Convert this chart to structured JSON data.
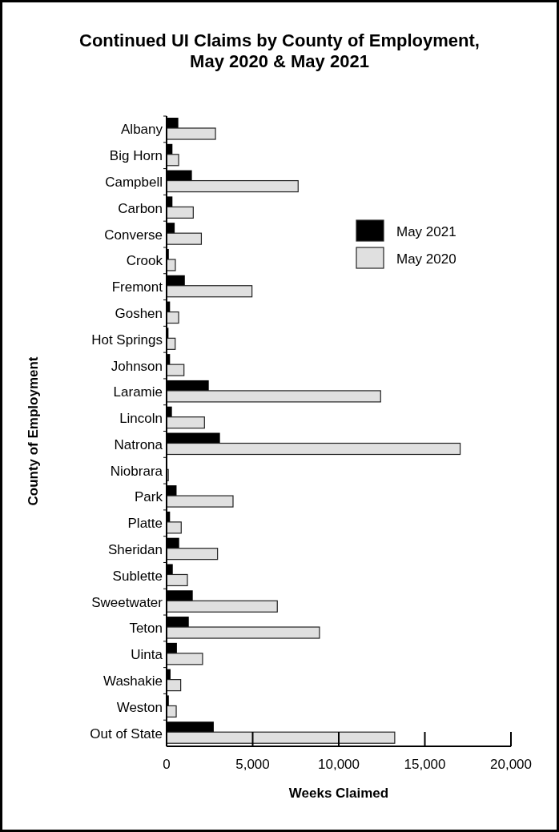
{
  "chart_data": {
    "type": "bar",
    "orientation": "horizontal",
    "title": "Continued UI Claims by County of Employment, May 2020 & May 2021",
    "xlabel": "Weeks Claimed",
    "ylabel": "County of Employment",
    "categories": [
      "Albany",
      "Big Horn",
      "Campbell",
      "Carbon",
      "Converse",
      "Crook",
      "Fremont",
      "Goshen",
      "Hot Springs",
      "Johnson",
      "Laramie",
      "Lincoln",
      "Natrona",
      "Niobrara",
      "Park",
      "Platte",
      "Sheridan",
      "Sublette",
      "Sweetwater",
      "Teton",
      "Uinta",
      "Washakie",
      "Weston",
      "Out of State"
    ],
    "series": [
      {
        "name": "May 2021",
        "color": "#000000",
        "values": [
          680,
          340,
          1470,
          340,
          470,
          130,
          1060,
          200,
          110,
          200,
          2450,
          310,
          3100,
          40,
          580,
          200,
          730,
          360,
          1520,
          1290,
          600,
          230,
          130,
          2740
        ]
      },
      {
        "name": "May 2020",
        "color": "#e0e0e0",
        "values": [
          2840,
          700,
          7640,
          1550,
          2020,
          510,
          4960,
          700,
          500,
          1010,
          12430,
          2200,
          17050,
          100,
          3860,
          850,
          2960,
          1210,
          6430,
          8880,
          2090,
          820,
          560,
          13250
        ]
      }
    ],
    "xlim": [
      0,
      20000
    ],
    "xticks": [
      0,
      {
        "value": 5000,
        "label": "5,000"
      },
      {
        "value": 10000,
        "label": "10,000"
      },
      {
        "value": 15000,
        "label": "15,000"
      },
      {
        "value": 20000,
        "label": "20,000"
      }
    ],
    "legend": "right"
  }
}
